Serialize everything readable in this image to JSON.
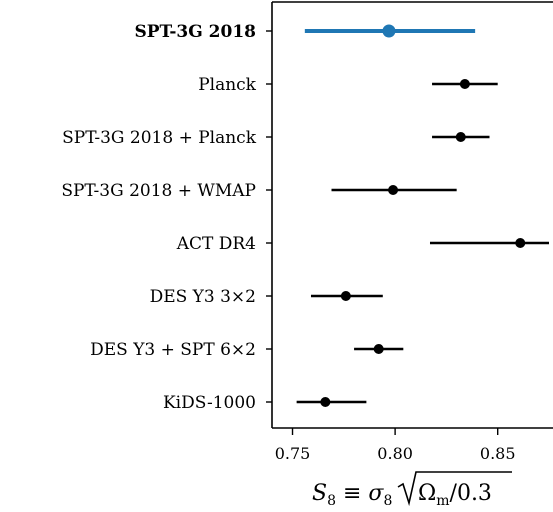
{
  "chart_data": {
    "type": "scatter",
    "subtype": "forest-plot",
    "categories": [
      "SPT-3G 2018",
      "Planck",
      "SPT-3G 2018 + Planck",
      "SPT-3G 2018 + WMAP",
      "ACT DR4",
      "DES Y3 3×2",
      "DES Y3 + SPT 6×2",
      "KiDS-1000"
    ],
    "highlighted_category": "SPT-3G 2018",
    "highlight_color": "#1f77b4",
    "default_color": "#000000",
    "points": [
      {
        "label": "SPT-3G 2018",
        "value": 0.797,
        "low": 0.756,
        "high": 0.839
      },
      {
        "label": "Planck",
        "value": 0.834,
        "low": 0.818,
        "high": 0.85
      },
      {
        "label": "SPT-3G 2018 + Planck",
        "value": 0.832,
        "low": 0.818,
        "high": 0.846
      },
      {
        "label": "SPT-3G 2018 + WMAP",
        "value": 0.799,
        "low": 0.769,
        "high": 0.83
      },
      {
        "label": "ACT DR4",
        "value": 0.861,
        "low": 0.817,
        "high": 0.875
      },
      {
        "label": "DES Y3 3×2",
        "value": 0.776,
        "low": 0.759,
        "high": 0.794
      },
      {
        "label": "DES Y3 + SPT 6×2",
        "value": 0.792,
        "low": 0.78,
        "high": 0.804
      },
      {
        "label": "KiDS-1000",
        "value": 0.766,
        "low": 0.752,
        "high": 0.786
      }
    ],
    "xlim": [
      0.74,
      0.875
    ],
    "xticks": [
      0.75,
      0.8,
      0.85
    ],
    "xtick_labels": [
      "0.75",
      "0.80",
      "0.85"
    ],
    "xlabel": "S8 ≡ σ8 √(Ωm/0.3)",
    "grid": false
  }
}
